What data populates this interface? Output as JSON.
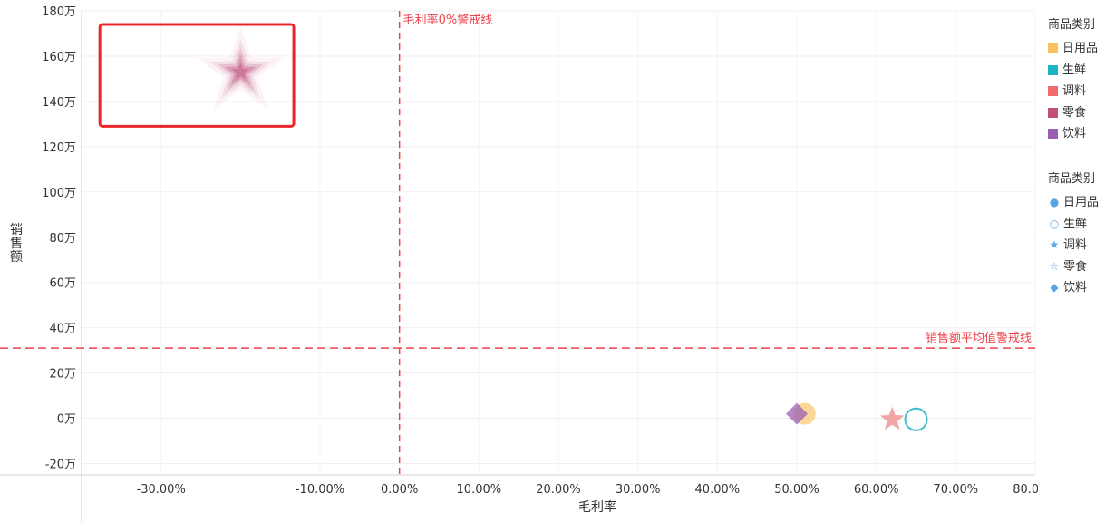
{
  "chart_data": {
    "type": "scatter",
    "xlabel": "毛利率",
    "ylabel": "销售额",
    "xlim": [
      -0.4,
      0.8
    ],
    "ylim": [
      -250000,
      1800000
    ],
    "x_ticks": [
      {
        "label": "-30.00%",
        "value": -0.3
      },
      {
        "label": "-10.00%",
        "value": -0.1
      },
      {
        "label": "0.00%",
        "value": 0.0
      },
      {
        "label": "10.00%",
        "value": 0.1
      },
      {
        "label": "20.00%",
        "value": 0.2
      },
      {
        "label": "30.00%",
        "value": 0.3
      },
      {
        "label": "40.00%",
        "value": 0.4
      },
      {
        "label": "50.00%",
        "value": 0.5
      },
      {
        "label": "60.00%",
        "value": 0.6
      },
      {
        "label": "70.00%",
        "value": 0.7
      },
      {
        "label": "80.00%",
        "value": 0.8
      }
    ],
    "y_ticks": [
      {
        "label": "180万",
        "value": 1800000
      },
      {
        "label": "160万",
        "value": 1600000
      },
      {
        "label": "140万",
        "value": 1400000
      },
      {
        "label": "120万",
        "value": 1200000
      },
      {
        "label": "100万",
        "value": 1000000
      },
      {
        "label": "80万",
        "value": 800000
      },
      {
        "label": "60万",
        "value": 600000
      },
      {
        "label": "40万",
        "value": 400000
      },
      {
        "label": "20万",
        "value": 200000
      },
      {
        "label": "0万",
        "value": 0
      },
      {
        "label": "-20万",
        "value": -200000
      }
    ],
    "grid": true,
    "reference_lines": [
      {
        "axis": "x",
        "value": 0.0,
        "label": "毛利率0%警戒线",
        "color": "#f0424a"
      },
      {
        "axis": "y",
        "value": 310000,
        "label": "销售额平均值警戒线",
        "color": "#f0424a"
      }
    ],
    "series": [
      {
        "name": "日用品",
        "color": "#fbc15e",
        "shape": "circle",
        "points": [
          {
            "x": 0.51,
            "y": 20000
          }
        ]
      },
      {
        "name": "生鲜",
        "color": "#1fb2c2",
        "shape": "circle-hollow",
        "points": [
          {
            "x": 0.65,
            "y": -5000
          }
        ]
      },
      {
        "name": "调料",
        "color": "#f08080",
        "shape": "star",
        "points": [
          {
            "x": 0.62,
            "y": -5000
          }
        ]
      },
      {
        "name": "零食",
        "color": "#c0507a",
        "shape": "star-layered",
        "points": [
          {
            "x": -0.2,
            "y": 1530000
          }
        ]
      },
      {
        "name": "饮料",
        "color": "#9b5fb4",
        "shape": "diamond",
        "points": [
          {
            "x": 0.5,
            "y": 20000
          }
        ]
      }
    ],
    "highlight_box": {
      "x": [
        -0.377,
        -0.133
      ],
      "y": [
        1290000,
        1740000
      ],
      "color": "#e8252a"
    },
    "legend": {
      "placement": "right",
      "color_title": "商品类别",
      "color_items": [
        {
          "label": "日用品",
          "color": "#fbc15e"
        },
        {
          "label": "生鲜",
          "color": "#1fb2c2"
        },
        {
          "label": "调料",
          "color": "#f06c6c"
        },
        {
          "label": "零食",
          "color": "#c0507a"
        },
        {
          "label": "饮料",
          "color": "#9b5fb4"
        }
      ],
      "shape_title": "商品类别",
      "shape_items": [
        {
          "label": "日用品",
          "icon": "●"
        },
        {
          "label": "生鲜",
          "icon": "○"
        },
        {
          "label": "调料",
          "icon": "★"
        },
        {
          "label": "零食",
          "icon": "☆"
        },
        {
          "label": "饮料",
          "icon": "◆"
        }
      ]
    }
  }
}
